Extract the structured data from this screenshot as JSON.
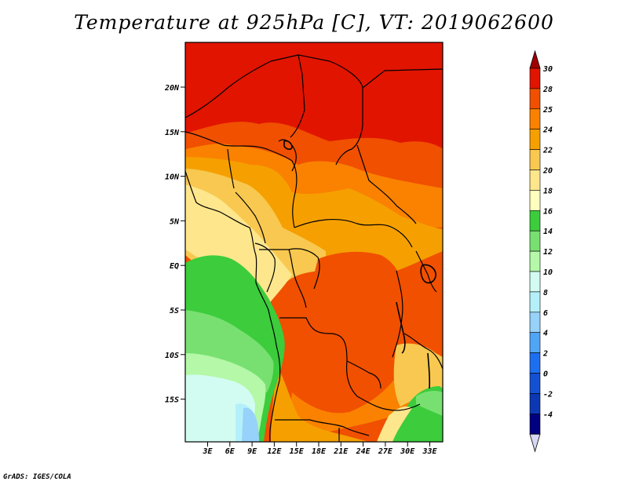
{
  "title": "Temperature at 925hPa [C], VT: 2019062600",
  "footer": "GrADS: IGES/COLA",
  "map": {
    "lat_ticks": [
      "20N",
      "15N",
      "10N",
      "5N",
      "EQ",
      "5S",
      "10S",
      "15S"
    ],
    "lon_ticks": [
      "3E",
      "6E",
      "9E",
      "12E",
      "15E",
      "18E",
      "21E",
      "24E",
      "27E",
      "30E",
      "33E"
    ]
  },
  "colorbar": {
    "levels": [
      "30",
      "28",
      "25",
      "24",
      "22",
      "20",
      "18",
      "16",
      "14",
      "12",
      "10",
      "8",
      "6",
      "4",
      "2",
      "0",
      "-2",
      "-4"
    ],
    "colors": [
      "#a00000",
      "#e11400",
      "#f05000",
      "#fa8200",
      "#f5a000",
      "#f8c850",
      "#fde68c",
      "#fefebe",
      "#3ccc3c",
      "#78e070",
      "#b4f8a8",
      "#d2fcf2",
      "#b4f0fa",
      "#96d2fa",
      "#50a5f5",
      "#1e6ef0",
      "#1450d2",
      "#0c38b4",
      "#000080"
    ],
    "bottom_arrow_color": "#d8d8f2"
  }
}
